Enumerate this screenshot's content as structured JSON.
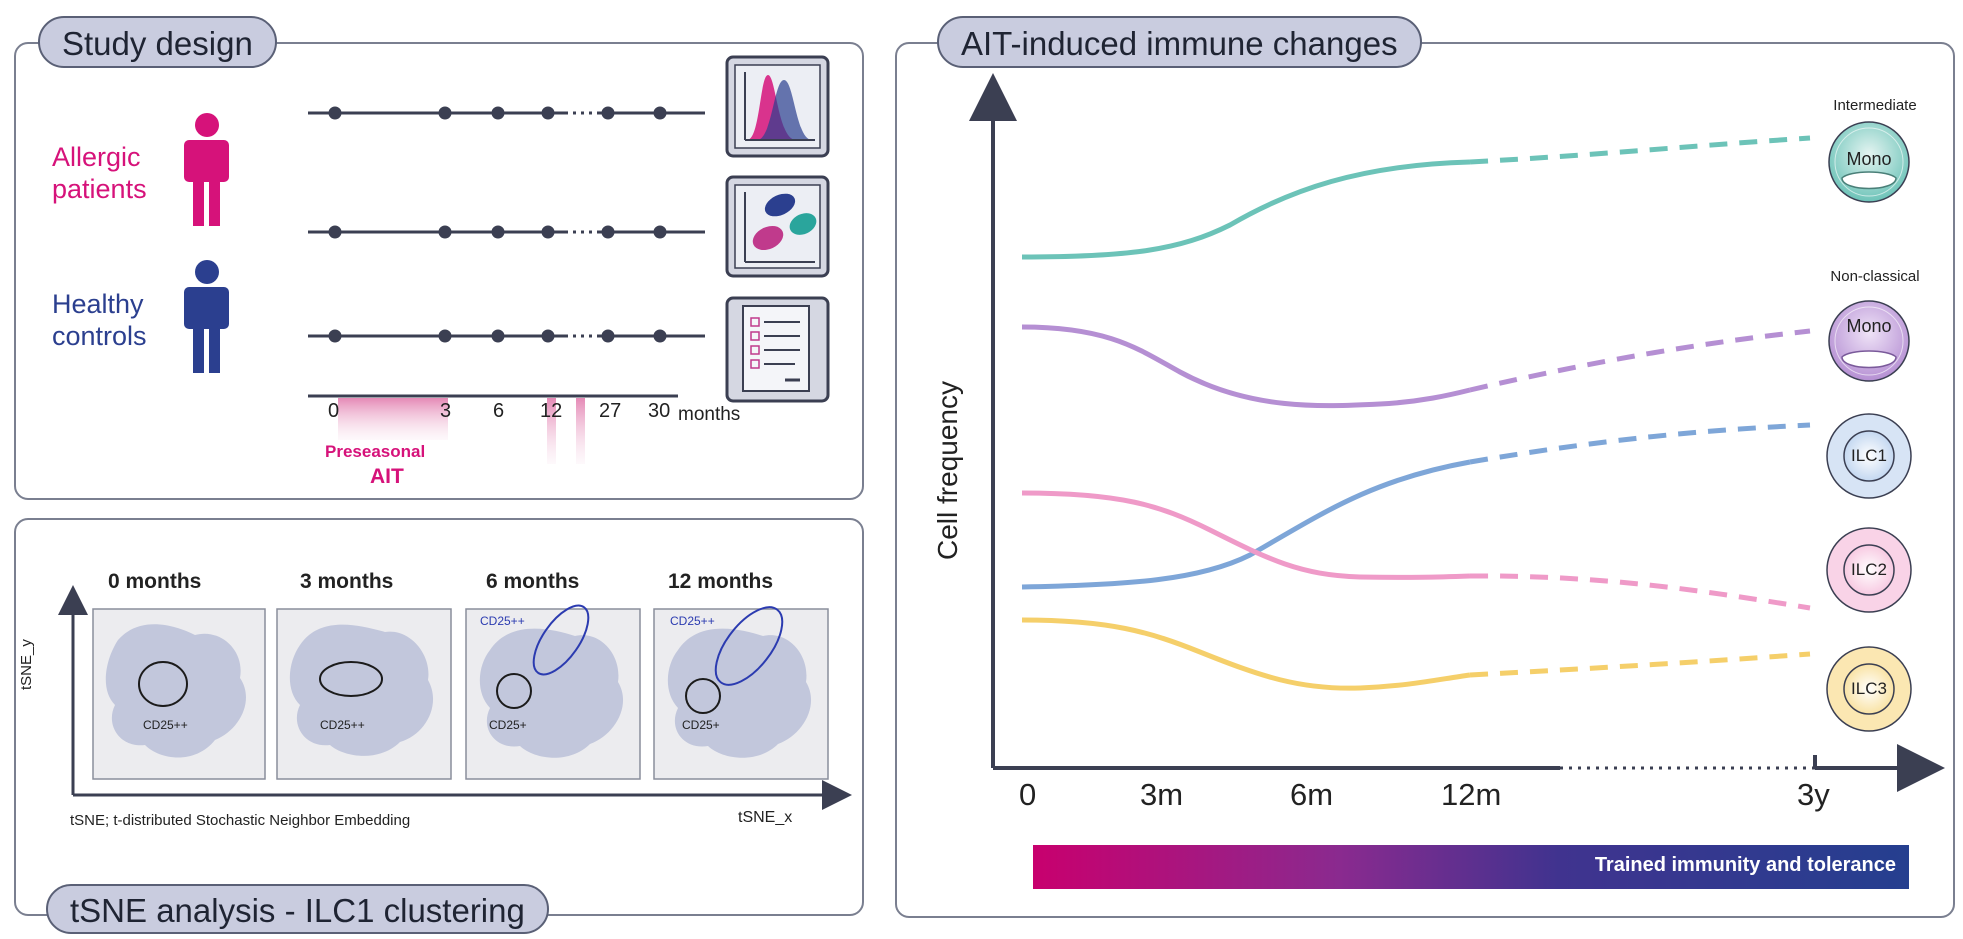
{
  "study_design": {
    "title": "Study design",
    "groups": [
      {
        "label_line1": "Allergic",
        "label_line2": "patients",
        "color": "#d6127a"
      },
      {
        "label_line1": "Healthy",
        "label_line2": "controls",
        "color": "#2b3f8f"
      }
    ],
    "timeline_ticks": [
      "0",
      "3",
      "6",
      "12",
      "27",
      "30"
    ],
    "timeline_unit": "months",
    "treatment_line1": "Preseasonal",
    "treatment_line2": "AIT",
    "treatment_color": "#d6127a"
  },
  "tsne": {
    "title": "tSNE analysis - ILC1 clustering",
    "panels": [
      {
        "title": "0 months",
        "label_upper": "",
        "label_lower": "CD25++"
      },
      {
        "title": "3 months",
        "label_upper": "",
        "label_lower": "CD25++"
      },
      {
        "title": "6 months",
        "label_upper": "CD25++",
        "label_lower": "CD25+"
      },
      {
        "title": "12 months",
        "label_upper": "CD25++",
        "label_lower": "CD25+"
      }
    ],
    "y_axis_label": "tSNE_y",
    "x_axis_label": "tSNE_x",
    "footnote": "tSNE; t-distributed Stochastic Neighbor Embedding"
  },
  "immune": {
    "title": "AIT-induced immune changes",
    "y_axis_label": "Cell frequency",
    "x_ticks": [
      "0",
      "3m",
      "6m",
      "12m",
      "3y"
    ],
    "bar_label": "Trained immunity and tolerance",
    "cells": [
      {
        "top_label": "Intermediate",
        "name": "Mono",
        "color": "#6cc3b8"
      },
      {
        "top_label": "Non-classical",
        "name": "Mono",
        "color": "#b58fd3"
      },
      {
        "top_label": "",
        "name": "ILC1",
        "color": "#7ea6d8"
      },
      {
        "top_label": "",
        "name": "ILC2",
        "color": "#ef9ac8"
      },
      {
        "top_label": "",
        "name": "ILC3",
        "color": "#f5cf6a"
      }
    ]
  }
}
